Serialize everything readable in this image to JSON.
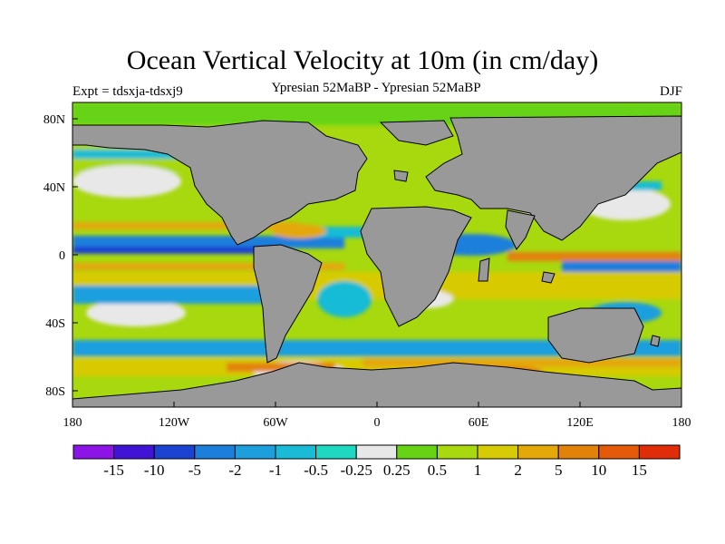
{
  "title": "Ocean Vertical Velocity at 10m (in cm/day)",
  "experiment": "Expt = tdsxja-tdsxj9",
  "subtitle": "Ypresian  52MaBP - Ypresian  52MaBP",
  "season": "DJF",
  "lat_labels": [
    "80N",
    "40N",
    "0",
    "40S",
    "80S"
  ],
  "lon_labels": [
    "180",
    "120W",
    "60W",
    "0",
    "60E",
    "120E",
    "180"
  ],
  "land_color": "#999999",
  "colorbar": {
    "colors": [
      "#8c14e6",
      "#4013d6",
      "#1a43d2",
      "#1c7fdc",
      "#1d9fde",
      "#19bbd6",
      "#1fd8c2",
      "#e8e8e8",
      "#66d314",
      "#a8d80e",
      "#d7cb06",
      "#e4a808",
      "#e38208",
      "#e45a08",
      "#e02c08"
    ],
    "labels": [
      "-15",
      "-10",
      "-5",
      "-2",
      "-1",
      "-0.5",
      "-0.25",
      "0.25",
      "0.5",
      "1",
      "2",
      "5",
      "10",
      "15"
    ]
  }
}
